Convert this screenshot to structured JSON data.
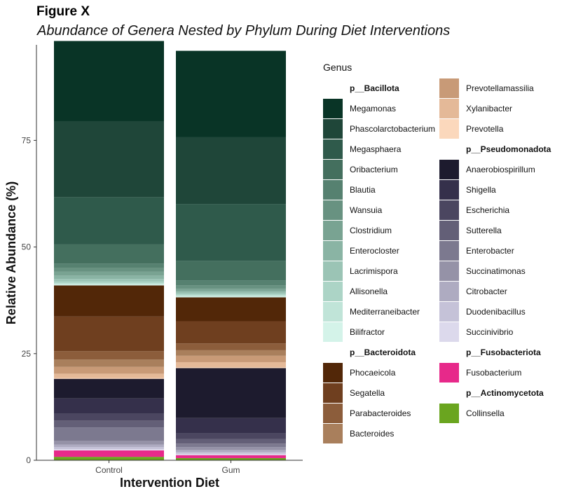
{
  "figure": {
    "label": "Figure X",
    "subtitle": "Abundance of Genera Nested by Phylum During Diet Interventions"
  },
  "chart_data": {
    "type": "bar",
    "stacked": true,
    "categories": [
      "Control",
      "Gum"
    ],
    "xlabel": "Intervention Diet",
    "ylabel": "Relative Abundance (%)",
    "ylim": [
      0,
      97.4
    ],
    "yticks": [
      0,
      25,
      50,
      75
    ],
    "grid": false,
    "legend_position": "right",
    "legend_title": "Genus",
    "series": [
      {
        "name": "Collinsella",
        "phylum": "p__Actinomycetota",
        "color": "#6aa51f",
        "values": [
          0.8,
          0.5
        ]
      },
      {
        "name": "Fusobacterium",
        "phylum": "p__Fusobacteriota",
        "color": "#e7298a",
        "values": [
          1.5,
          0.7
        ]
      },
      {
        "name": "Succinivibrio",
        "phylum": "p__Pseudomonadota",
        "color": "#dcd9ec",
        "values": [
          0.3,
          0.3
        ]
      },
      {
        "name": "Duodenibacillus",
        "phylum": "p__Pseudomonadota",
        "color": "#c5c2d8",
        "values": [
          0.5,
          0.4
        ]
      },
      {
        "name": "Citrobacter",
        "phylum": "p__Pseudomonadota",
        "color": "#aeabc1",
        "values": [
          0.6,
          0.5
        ]
      },
      {
        "name": "Succinatimonas",
        "phylum": "p__Pseudomonadota",
        "color": "#9592a7",
        "values": [
          0.9,
          0.7
        ]
      },
      {
        "name": "Enterobacter",
        "phylum": "p__Pseudomonadota",
        "color": "#7c798f",
        "values": [
          3.1,
          0.8
        ]
      },
      {
        "name": "Sutterella",
        "phylum": "p__Pseudomonadota",
        "color": "#635f77",
        "values": [
          1.6,
          1.1
        ]
      },
      {
        "name": "Escherichia",
        "phylum": "p__Pseudomonadota",
        "color": "#4b4660",
        "values": [
          1.7,
          1.3
        ]
      },
      {
        "name": "Shigella",
        "phylum": "p__Pseudomonadota",
        "color": "#35304b",
        "values": [
          3.5,
          3.6
        ]
      },
      {
        "name": "Anaerobiospirillum",
        "phylum": "p__Pseudomonadota",
        "color": "#1d1b2e",
        "values": [
          4.6,
          11.7
        ]
      },
      {
        "name": "Prevotella",
        "phylum": "p__Bacteroidota",
        "color": "#fbd8bc",
        "values": [
          0.2,
          0.2
        ]
      },
      {
        "name": "Xylanibacter",
        "phylum": "p__Bacteroidota",
        "color": "#e4b998",
        "values": [
          1.0,
          1.2
        ]
      },
      {
        "name": "Prevotellamassilia",
        "phylum": "p__Bacteroidota",
        "color": "#c89a77",
        "values": [
          1.6,
          1.5
        ]
      },
      {
        "name": "Bacteroides",
        "phylum": "p__Bacteroidota",
        "color": "#a97f5c",
        "values": [
          1.7,
          1.3
        ]
      },
      {
        "name": "Parabacteroides",
        "phylum": "p__Bacteroidota",
        "color": "#8c5d3b",
        "values": [
          2.0,
          1.6
        ]
      },
      {
        "name": "Segatella",
        "phylum": "p__Bacteroidota",
        "color": "#6f3f1f",
        "values": [
          8.1,
          5.2
        ]
      },
      {
        "name": "Phocaeicola",
        "phylum": "p__Bacteroidota",
        "color": "#522708",
        "values": [
          7.3,
          5.6
        ]
      },
      {
        "name": "Bilifractor",
        "phylum": "p__Bacillota",
        "color": "#d4f3e9",
        "values": [
          0.2,
          0.2
        ]
      },
      {
        "name": "Mediterraneibacter",
        "phylum": "p__Bacillota",
        "color": "#c0e4d8",
        "values": [
          0.3,
          0.3
        ]
      },
      {
        "name": "Allisonella",
        "phylum": "p__Bacillota",
        "color": "#acd4c6",
        "values": [
          0.4,
          0.3
        ]
      },
      {
        "name": "Lacrimispora",
        "phylum": "p__Bacillota",
        "color": "#9bc4b5",
        "values": [
          0.6,
          0.3
        ]
      },
      {
        "name": "Enterocloster",
        "phylum": "p__Bacillota",
        "color": "#8ab4a4",
        "values": [
          0.8,
          0.4
        ]
      },
      {
        "name": "Clostridium",
        "phylum": "p__Bacillota",
        "color": "#79a392",
        "values": [
          0.9,
          0.5
        ]
      },
      {
        "name": "Wansuia",
        "phylum": "p__Bacillota",
        "color": "#689281",
        "values": [
          0.9,
          0.8
        ]
      },
      {
        "name": "Blautia",
        "phylum": "p__Bacillota",
        "color": "#568170",
        "values": [
          1.0,
          1.2
        ]
      },
      {
        "name": "Oribacterium",
        "phylum": "p__Bacillota",
        "color": "#446f5e",
        "values": [
          4.5,
          4.6
        ]
      },
      {
        "name": "Megasphaera",
        "phylum": "p__Bacillota",
        "color": "#2f5a4b",
        "values": [
          11.1,
          13.3
        ]
      },
      {
        "name": "Phascolarctobacterium",
        "phylum": "p__Bacillota",
        "color": "#1f4639",
        "values": [
          17.8,
          15.7
        ]
      },
      {
        "name": "Megamonas",
        "phylum": "p__Bacillota",
        "color": "#093426",
        "values": [
          18.8,
          20.2
        ]
      }
    ]
  },
  "legend": {
    "title": "Genus",
    "columns": [
      [
        {
          "text": "p__Bacillota",
          "header": true
        },
        {
          "text": "Megamonas",
          "color": "#093426"
        },
        {
          "text": "Phascolarctobacterium",
          "color": "#1f4639"
        },
        {
          "text": "Megasphaera",
          "color": "#2f5a4b"
        },
        {
          "text": "Oribacterium",
          "color": "#446f5e"
        },
        {
          "text": "Blautia",
          "color": "#568170"
        },
        {
          "text": "Wansuia",
          "color": "#689281"
        },
        {
          "text": "Clostridium",
          "color": "#79a392"
        },
        {
          "text": "Enterocloster",
          "color": "#8ab4a4"
        },
        {
          "text": "Lacrimispora",
          "color": "#9bc4b5"
        },
        {
          "text": "Allisonella",
          "color": "#acd4c6"
        },
        {
          "text": "Mediterraneibacter",
          "color": "#c0e4d8"
        },
        {
          "text": "Bilifractor",
          "color": "#d4f3e9"
        },
        {
          "text": "p__Bacteroidota",
          "header": true
        },
        {
          "text": "Phocaeicola",
          "color": "#522708"
        },
        {
          "text": "Segatella",
          "color": "#6f3f1f"
        },
        {
          "text": "Parabacteroides",
          "color": "#8c5d3b"
        },
        {
          "text": "Bacteroides",
          "color": "#a97f5c"
        }
      ],
      [
        {
          "text": "Prevotellamassilia",
          "color": "#c89a77"
        },
        {
          "text": "Xylanibacter",
          "color": "#e4b998"
        },
        {
          "text": "Prevotella",
          "color": "#fbd8bc"
        },
        {
          "text": "p__Pseudomonadota",
          "header": true
        },
        {
          "text": "Anaerobiospirillum",
          "color": "#1d1b2e"
        },
        {
          "text": "Shigella",
          "color": "#35304b"
        },
        {
          "text": "Escherichia",
          "color": "#4b4660"
        },
        {
          "text": "Sutterella",
          "color": "#635f77"
        },
        {
          "text": "Enterobacter",
          "color": "#7c798f"
        },
        {
          "text": "Succinatimonas",
          "color": "#9592a7"
        },
        {
          "text": "Citrobacter",
          "color": "#aeabc1"
        },
        {
          "text": "Duodenibacillus",
          "color": "#c5c2d8"
        },
        {
          "text": "Succinivibrio",
          "color": "#dcd9ec"
        },
        {
          "text": "p__Fusobacteriota",
          "header": true
        },
        {
          "text": "Fusobacterium",
          "color": "#e7298a"
        },
        {
          "text": "p__Actinomycetota",
          "header": true
        },
        {
          "text": "Collinsella",
          "color": "#6aa51f"
        }
      ]
    ]
  }
}
